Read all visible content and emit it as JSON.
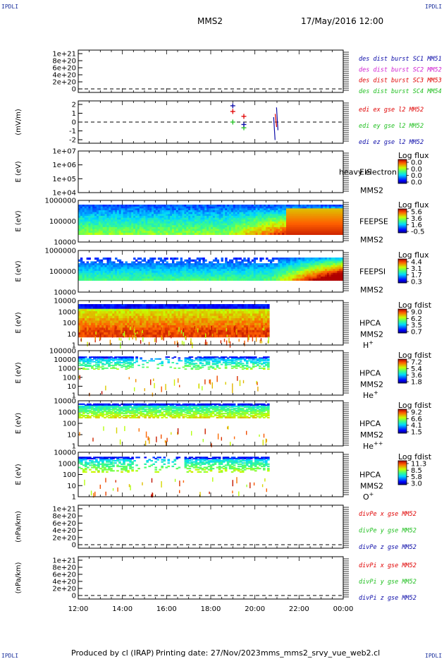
{
  "header": {
    "title": "MMS2",
    "datetime": "17/May/2016 12:00",
    "corner_tl": "IPDLI",
    "corner_tr": "IPDLI",
    "corner_bl": "IPDLI",
    "corner_br": "IPDLI"
  },
  "footer": {
    "produced": "Produced by cl (IRAP)",
    "printing": "Printing date: 27/Nov/2023",
    "file": "mms_mms2_srvy_vue_web2.cl"
  },
  "colors": {
    "red": "#e00000",
    "green": "#1fbf1f",
    "blue": "#0a0aa8",
    "magenta": "#d020d0"
  },
  "chart_data": {
    "type": "spectrogram-stack",
    "x_ticks": [
      "12:00",
      "14:00",
      "16:00",
      "18:00",
      "20:00",
      "22:00",
      "00:00"
    ],
    "x_range_hours": [
      12,
      24
    ],
    "panels": [
      {
        "id": "dist",
        "kind": "line",
        "ylabel": "",
        "ticks": [
          "1e+21",
          "8e+20",
          "6e+20",
          "4e+20",
          "2e+20",
          "0"
        ],
        "legend": [
          {
            "text": "des dist burst SC1 MM51",
            "color": "blue"
          },
          {
            "text": "des dist burst SC2 MM52",
            "color": "magenta"
          },
          {
            "text": "des dist burst SC3 MM53",
            "color": "red"
          },
          {
            "text": "des dist burst SC4 MM54",
            "color": "green"
          }
        ]
      },
      {
        "id": "edi",
        "kind": "line",
        "ylabel": "(mV/m)",
        "ticks": [
          "2",
          "1",
          "0",
          "-1",
          "-2"
        ],
        "ylim": [
          -2.6,
          2.6
        ],
        "legend": [
          {
            "text": "edi ex gse l2 MM52",
            "color": "red"
          },
          {
            "text": "edi ey gse l2 MM52",
            "color": "green"
          },
          {
            "text": "edi ez gse l2 MM52",
            "color": "blue"
          }
        ],
        "markers": [
          {
            "t": 19.0,
            "v": 1.3,
            "color": "red"
          },
          {
            "t": 19.5,
            "v": 0.7,
            "color": "red"
          },
          {
            "t": 19.0,
            "v": 0.0,
            "color": "green"
          },
          {
            "t": 19.5,
            "v": -0.7,
            "color": "green"
          },
          {
            "t": 19.0,
            "v": 2.0,
            "color": "blue"
          },
          {
            "t": 19.5,
            "v": -0.3,
            "color": "blue"
          }
        ]
      },
      {
        "id": "eis",
        "kind": "spectrogram",
        "ylabel": "E (eV)",
        "ticks": [
          "1e+07",
          "1e+06",
          "1e+05",
          "1e+04"
        ],
        "instrument": "EIS",
        "subtitle": "MMS2",
        "extra_label": "heavy electron to",
        "cbar_title": "Log flux",
        "cbar_ticks": [
          "0.0",
          "0.0",
          "0.0",
          "0.0"
        ]
      },
      {
        "id": "feepse",
        "kind": "spectrogram",
        "ylabel": "E (eV)",
        "ticks": [
          "1000000",
          "100000",
          "10000"
        ],
        "instrument": "FEEPSE",
        "subtitle": "MMS2",
        "cbar_title": "Log flux",
        "cbar_ticks": [
          "5.6",
          "3.6",
          "1.6",
          "-0.5"
        ]
      },
      {
        "id": "feepsi",
        "kind": "spectrogram",
        "ylabel": "E (eV)",
        "ticks": [
          "1000000",
          "100000",
          "10000"
        ],
        "instrument": "FEEPSI",
        "subtitle": "MMS2",
        "cbar_title": "Log flux",
        "cbar_ticks": [
          "4.4",
          "3.1",
          "1.7",
          "0.3"
        ]
      },
      {
        "id": "hpca_h",
        "kind": "spectrogram",
        "ylabel": "E (eV)",
        "ticks": [
          "10000",
          "1000",
          "100",
          "10",
          "1"
        ],
        "instrument": "HPCA",
        "subtitle": "MMS2",
        "species": "H+",
        "cbar_title": "Log fdist",
        "cbar_ticks": [
          "9.0",
          "6.2",
          "3.5",
          "0.7"
        ]
      },
      {
        "id": "hpca_he",
        "kind": "spectrogram",
        "ylabel": "E (eV)",
        "ticks": [
          "100000",
          "10000",
          "1000",
          "100",
          "10",
          "1"
        ],
        "instrument": "HPCA",
        "subtitle": "MMS2",
        "species": "He+",
        "cbar_title": "Log fdist",
        "cbar_ticks": [
          "7.2",
          "5.4",
          "3.6",
          "1.8"
        ]
      },
      {
        "id": "hpca_hepp",
        "kind": "spectrogram",
        "ylabel": "E (eV)",
        "ticks": [
          "10000",
          "1000",
          "100",
          "10",
          "1"
        ],
        "instrument": "HPCA",
        "subtitle": "MMS2",
        "species": "He++",
        "cbar_title": "Log fdist",
        "cbar_ticks": [
          "9.2",
          "6.6",
          "4.1",
          "1.5"
        ]
      },
      {
        "id": "hpca_o",
        "kind": "spectrogram",
        "ylabel": "E (eV)",
        "ticks": [
          "10000",
          "1000",
          "100",
          "10",
          "1"
        ],
        "instrument": "HPCA",
        "subtitle": "MMS2",
        "species": "O+",
        "cbar_title": "Log fdist",
        "cbar_ticks": [
          "11.3",
          "8.5",
          "5.8",
          "3.0"
        ]
      },
      {
        "id": "divpe",
        "kind": "line",
        "ylabel": "(nPa/km)",
        "ticks": [
          "1e+21",
          "8e+20",
          "6e+20",
          "4e+20",
          "2e+20",
          "0"
        ],
        "legend": [
          {
            "text": "divPe x gse MM52",
            "color": "red"
          },
          {
            "text": "divPe y gse MM52",
            "color": "green"
          },
          {
            "text": "divPe z gse MM52",
            "color": "blue"
          }
        ]
      },
      {
        "id": "divpi",
        "kind": "line",
        "ylabel": "(nPa/km)",
        "ticks": [
          "1e+21",
          "8e+20",
          "6e+20",
          "4e+20",
          "2e+20",
          "0"
        ],
        "legend": [
          {
            "text": "divPi x gse MM52",
            "color": "red"
          },
          {
            "text": "divPi y gse MM52",
            "color": "green"
          },
          {
            "text": "divPi z gse MM52",
            "color": "blue"
          }
        ]
      }
    ]
  }
}
